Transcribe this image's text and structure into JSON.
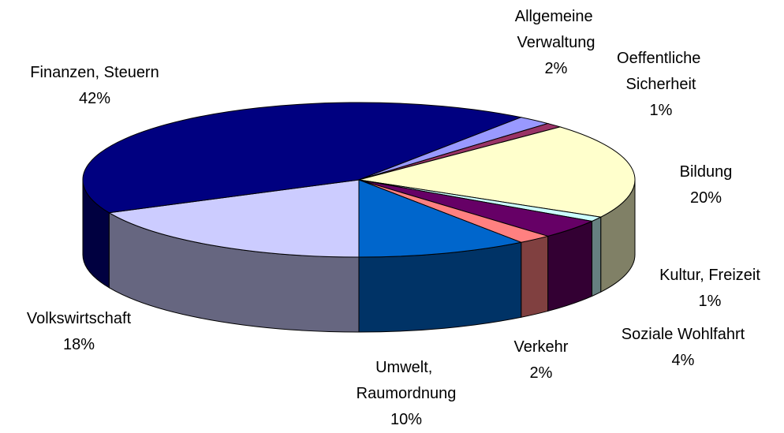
{
  "chart_data": {
    "type": "pie3d",
    "categories": [
      "Volkswirtschaft",
      "Finanzen, Steuern",
      "Allgemeine Verwaltung",
      "Oeffentliche Sicherheit",
      "Bildung",
      "Kultur, Freizeit",
      "Soziale Wohlfahrt",
      "Verkehr",
      "Umwelt, Raumordnung"
    ],
    "values": [
      18,
      42,
      2,
      1,
      20,
      1,
      4,
      2,
      10
    ],
    "value_labels": [
      "18%",
      "42%",
      "2%",
      "1%",
      "20%",
      "1%",
      "4%",
      "2%",
      "10%"
    ],
    "colors": [
      "#ccccff",
      "#000080",
      "#9999ff",
      "#993366",
      "#ffffcc",
      "#ccffff",
      "#660066",
      "#ff8080",
      "#0066cc"
    ]
  }
}
